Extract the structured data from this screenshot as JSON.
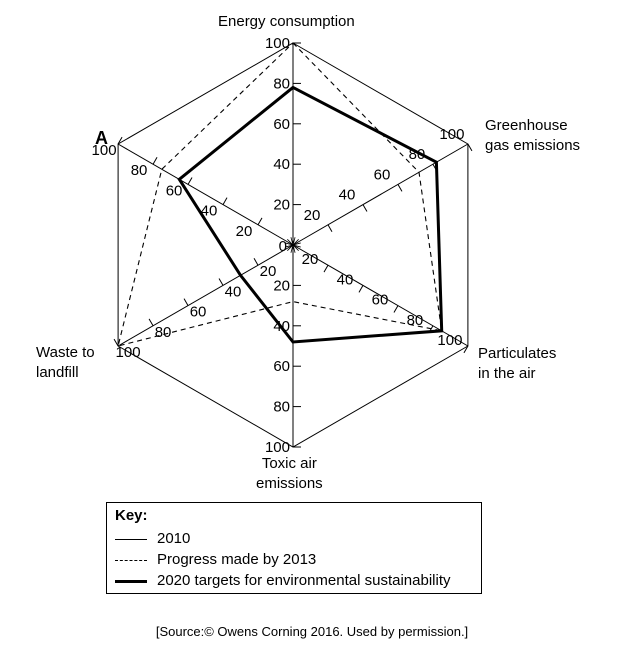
{
  "chart_data": {
    "type": "radar",
    "axes": [
      {
        "label": "Energy consumption"
      },
      {
        "label": "Greenhouse\ngas emissions"
      },
      {
        "label": "Particulates\nin the air"
      },
      {
        "label": "Toxic air\nemissions"
      },
      {
        "label": "Waste to\nlandfill"
      },
      {
        "label": ""
      }
    ],
    "range": [
      0,
      100
    ],
    "ticks": [
      "20",
      "40",
      "60",
      "80",
      "100"
    ],
    "center_label": "0",
    "point_marker": "A",
    "series": [
      {
        "name": "2010",
        "style": "thin",
        "values": [
          100,
          100,
          100,
          100,
          100,
          100
        ]
      },
      {
        "name": "Progress made by 2013",
        "style": "dashed",
        "values": [
          100,
          72,
          85,
          28,
          100,
          75
        ]
      },
      {
        "name": "2020 targets for environmental sustainability",
        "style": "thick",
        "values": [
          78,
          82,
          85,
          48,
          30,
          65
        ]
      }
    ]
  },
  "key": {
    "title": "Key:",
    "items": [
      "2010",
      "Progress made by 2013",
      "2020 targets for environmental sustainability"
    ]
  },
  "source": "[Source:© Owens Corning 2016. Used by permission.]"
}
